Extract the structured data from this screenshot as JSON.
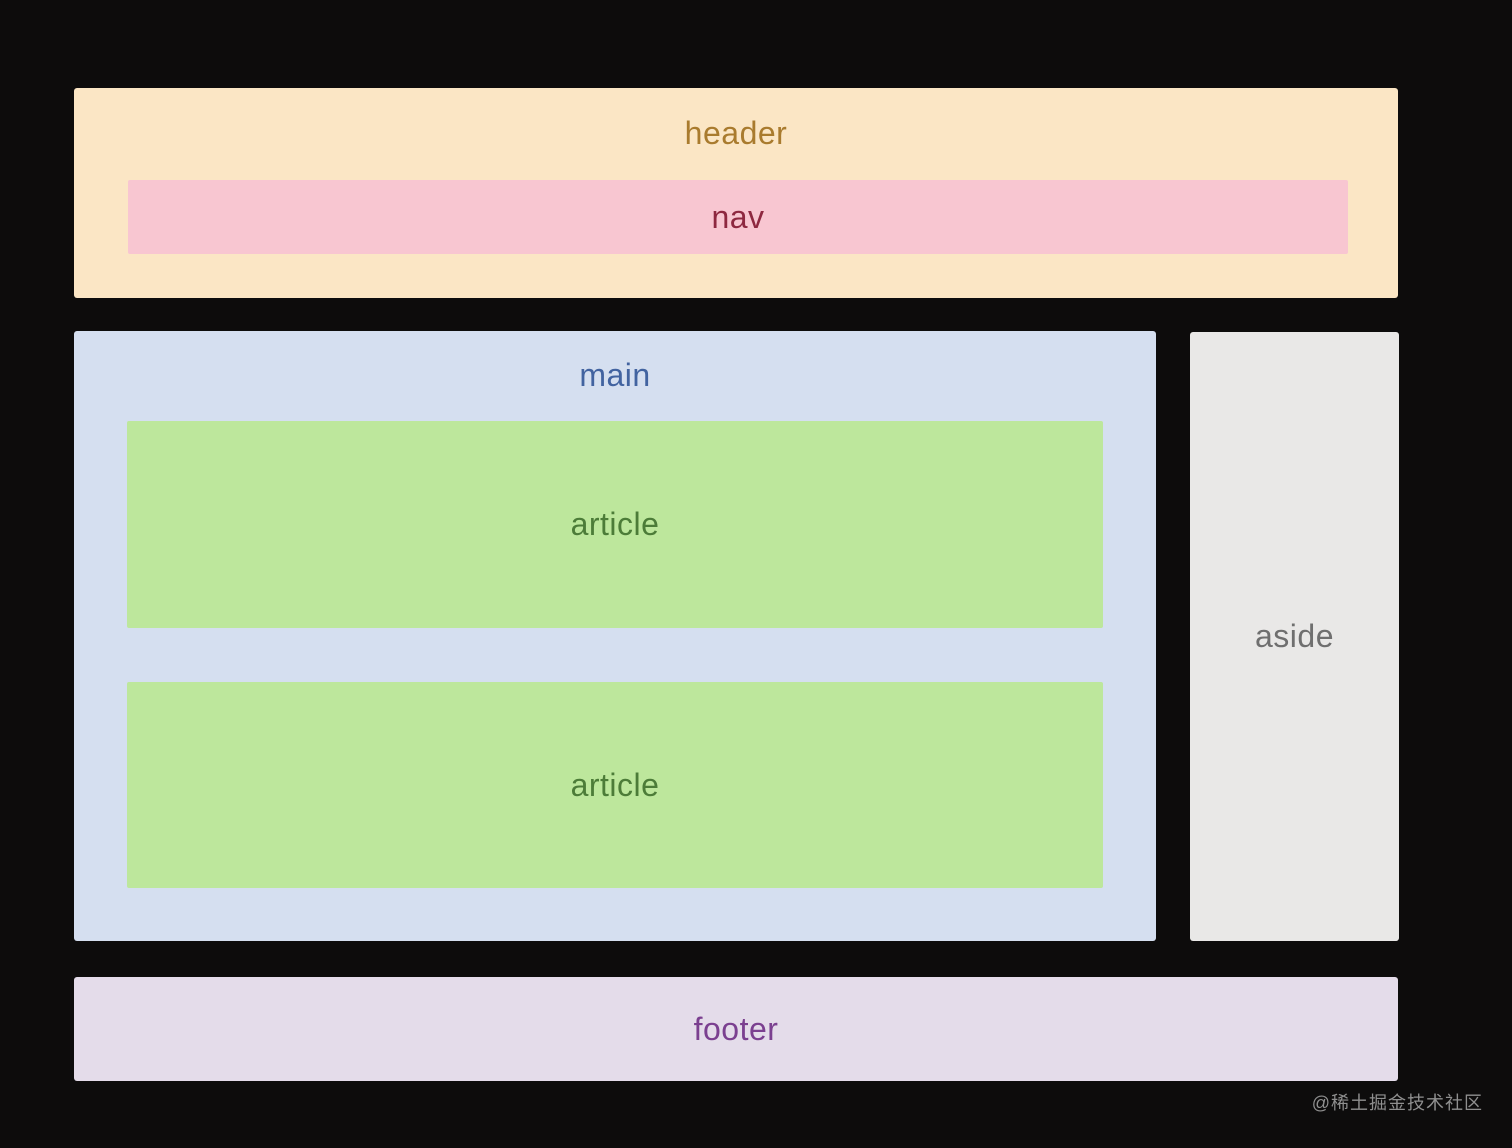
{
  "diagram": {
    "title": "html5-semantic-layout",
    "background_color": "#0d0c0c",
    "header": {
      "label": "header",
      "bg": "#fbe6c5",
      "text_color": "#a97b2e"
    },
    "nav": {
      "label": "nav",
      "bg": "#f8c6d1",
      "text_color": "#8e2840"
    },
    "main": {
      "label": "main",
      "bg": "#d5dff0",
      "text_color": "#4263a0"
    },
    "articles": [
      {
        "label": "article"
      },
      {
        "label": "article"
      }
    ],
    "article_style": {
      "bg": "#bde79c",
      "text_color": "#4c7c38"
    },
    "aside": {
      "label": "aside",
      "bg": "#e9e8e7",
      "text_color": "#6f6f6f"
    },
    "footer": {
      "label": "footer",
      "bg": "#e4dcea",
      "text_color": "#7b4090"
    }
  },
  "watermark": {
    "text": "@稀土掘金技术社区"
  }
}
